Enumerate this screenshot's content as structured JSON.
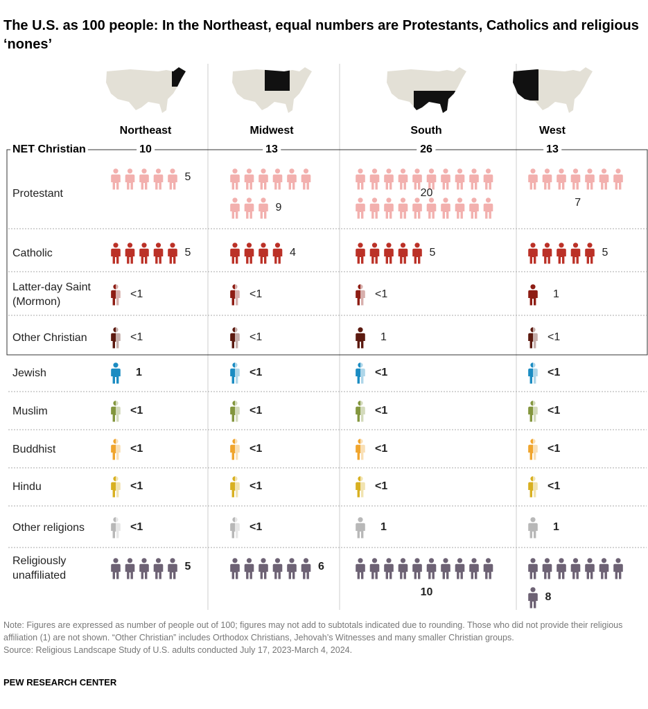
{
  "chart_data": {
    "type": "pictogram",
    "title": "The U.S. as 100 people: In the Northeast, equal numbers are Protestants, Catholics and religious ‘nones’",
    "columns": [
      "Northeast",
      "Midwest",
      "South",
      "West"
    ],
    "net": {
      "label": "NET Christian",
      "values": [
        10,
        13,
        26,
        13
      ]
    },
    "rows": [
      {
        "label": "Protestant",
        "color": "#f2b0ae",
        "values": [
          5,
          9,
          20,
          7
        ]
      },
      {
        "label": "Catholic",
        "color": "#bb3127",
        "values": [
          5,
          4,
          5,
          5
        ]
      },
      {
        "label": "Latter-day Saint (Mormon)",
        "color": "#8e1d14",
        "values": [
          {
            "value": 0.5,
            "label": "<1"
          },
          {
            "value": 0.5,
            "label": "<1"
          },
          {
            "value": 0.5,
            "label": "<1"
          },
          1
        ]
      },
      {
        "label": "Other Christian",
        "color": "#5c1a10",
        "values": [
          {
            "value": 0.5,
            "label": "<1"
          },
          {
            "value": 0.5,
            "label": "<1"
          },
          1,
          {
            "value": 0.5,
            "label": "<1"
          }
        ]
      },
      {
        "label": "Jewish",
        "color": "#1b8cc2",
        "values": [
          1,
          {
            "value": 0.5,
            "label": "<1"
          },
          {
            "value": 0.5,
            "label": "<1"
          },
          {
            "value": 0.5,
            "label": "<1"
          }
        ]
      },
      {
        "label": "Muslim",
        "color": "#83963e",
        "values": [
          {
            "value": 0.5,
            "label": "<1"
          },
          {
            "value": 0.5,
            "label": "<1"
          },
          {
            "value": 0.5,
            "label": "<1"
          },
          {
            "value": 0.5,
            "label": "<1"
          }
        ]
      },
      {
        "label": "Buddhist",
        "color": "#f0a52e",
        "values": [
          {
            "value": 0.5,
            "label": "<1"
          },
          {
            "value": 0.5,
            "label": "<1"
          },
          {
            "value": 0.5,
            "label": "<1"
          },
          {
            "value": 0.5,
            "label": "<1"
          }
        ]
      },
      {
        "label": "Hindu",
        "color": "#d8b021",
        "values": [
          {
            "value": 0.5,
            "label": "<1"
          },
          {
            "value": 0.5,
            "label": "<1"
          },
          {
            "value": 0.5,
            "label": "<1"
          },
          {
            "value": 0.5,
            "label": "<1"
          }
        ]
      },
      {
        "label": "Other religions",
        "color": "#b8b8b8",
        "values": [
          {
            "value": 0.5,
            "label": "<1"
          },
          {
            "value": 0.5,
            "label": "<1"
          },
          1,
          1
        ]
      },
      {
        "label": "Religiously unaffiliated",
        "color": "#6d6274",
        "values": [
          5,
          6,
          10,
          8
        ]
      }
    ],
    "note": "Note: Figures are expressed as number of people out of 100; figures may not add to subtotals indicated due to rounding. Those who did not provide their religious affiliation (1) are not shown. “Other Christian” includes Orthodox Christians, Jehovah’s Witnesses and many smaller Christian groups.",
    "source": "Source: Religious Landscape Study of U.S. adults conducted July 17, 2023-March 4, 2024.",
    "credit": "PEW RESEARCH CENTER"
  }
}
